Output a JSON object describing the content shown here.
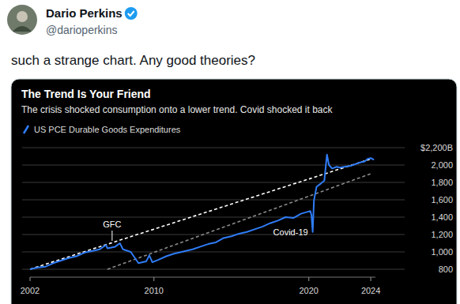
{
  "tweet": {
    "name": "Dario Perkins",
    "handle": "@darioperkins",
    "text": "such a strange chart. Any good theories?"
  },
  "chart_data": {
    "type": "line",
    "title": "The Trend Is Your Friend",
    "subtitle": "The crisis shocked consumption onto a lower trend. Covid shocked it back",
    "xlim": [
      2002,
      2024.3
    ],
    "xticks": [
      2002,
      2010,
      2020,
      2024
    ],
    "ylim": [
      800,
      2200
    ],
    "yticks": [
      800,
      {
        "value": 1000,
        "label": "1,000"
      },
      {
        "value": 1200,
        "label": "1,200"
      },
      {
        "value": 1400,
        "label": "1,400"
      },
      {
        "value": 1600,
        "label": "1,600"
      },
      {
        "value": 1800,
        "label": "1,800"
      },
      {
        "value": 2000,
        "label": "2,000"
      },
      {
        "value": 2200,
        "label": "$2,200B"
      }
    ],
    "grid": true,
    "legend": "top-left",
    "series": [
      {
        "name": "US PCE Durable Goods Expenditures",
        "color": "#2f7cf6",
        "line_style": "solid",
        "x": [
          2002.0,
          2002.5,
          2003.0,
          2003.5,
          2004.0,
          2004.5,
          2005.0,
          2005.5,
          2006.0,
          2006.5,
          2006.9,
          2007.0,
          2007.5,
          2007.8,
          2008.0,
          2008.5,
          2009.0,
          2009.5,
          2009.7,
          2009.9,
          2010.3,
          2010.8,
          2011.3,
          2011.8,
          2012.5,
          2013.0,
          2013.5,
          2014.0,
          2014.5,
          2015.0,
          2015.5,
          2016.0,
          2016.5,
          2017.0,
          2017.5,
          2018.0,
          2018.5,
          2019.0,
          2019.5,
          2019.9,
          2020.1,
          2020.17,
          2020.25,
          2020.33,
          2020.5,
          2020.8,
          2021.0,
          2021.17,
          2021.3,
          2021.5,
          2021.8,
          2022.0,
          2022.3,
          2022.7,
          2023.0,
          2023.3,
          2023.6,
          2023.8,
          2024.0,
          2024.2
        ],
        "values": [
          800,
          820,
          830,
          870,
          900,
          930,
          950,
          990,
          1010,
          1030,
          1080,
          1040,
          1060,
          1100,
          1030,
          1000,
          870,
          890,
          960,
          880,
          910,
          950,
          980,
          1000,
          1030,
          1060,
          1090,
          1110,
          1160,
          1180,
          1210,
          1230,
          1260,
          1290,
          1330,
          1360,
          1400,
          1390,
          1440,
          1460,
          1470,
          1420,
          1230,
          1590,
          1750,
          1790,
          1820,
          2120,
          2000,
          1960,
          1980,
          1970,
          1980,
          1990,
          2010,
          2030,
          2040,
          2070,
          2080,
          2060
        ]
      },
      {
        "color": "#ffffff",
        "line_style": "dashed",
        "x": [
          2002,
          2024
        ],
        "values": [
          800,
          2070
        ]
      },
      {
        "color": "#8a8a8a",
        "line_style": "dashed",
        "x": [
          2007,
          2024
        ],
        "values": [
          800,
          1900
        ]
      }
    ],
    "annotations": [
      {
        "text": "GFC",
        "x": 2007.3,
        "y": 1100
      },
      {
        "text": "Covid-19",
        "x": 2020.25,
        "y": 1230
      }
    ]
  }
}
